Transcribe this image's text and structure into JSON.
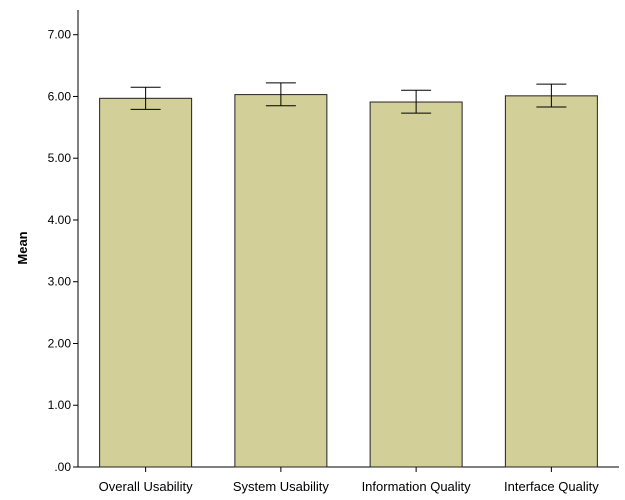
{
  "chart_data": {
    "type": "bar",
    "title": "",
    "xlabel": "",
    "ylabel": "Mean",
    "ylim": [
      0,
      7.4
    ],
    "yticks": [
      0,
      1,
      2,
      3,
      4,
      5,
      6,
      7
    ],
    "ytick_labels": [
      ".00",
      "1.00",
      "2.00",
      "3.00",
      "4.00",
      "5.00",
      "6.00",
      "7.00"
    ],
    "categories": [
      "Overall Usability",
      "System Usability",
      "Information Quality",
      "Interface Quality"
    ],
    "values": [
      5.97,
      6.03,
      5.91,
      6.01
    ],
    "error_low": [
      5.79,
      5.85,
      5.73,
      5.83
    ],
    "error_high": [
      6.15,
      6.22,
      6.1,
      6.2
    ],
    "grid": false,
    "legend": "none",
    "colors": {
      "bar_fill": "#d3cf98",
      "bar_stroke": "#222222",
      "axis": "#000000",
      "error_bar": "#000000"
    }
  }
}
